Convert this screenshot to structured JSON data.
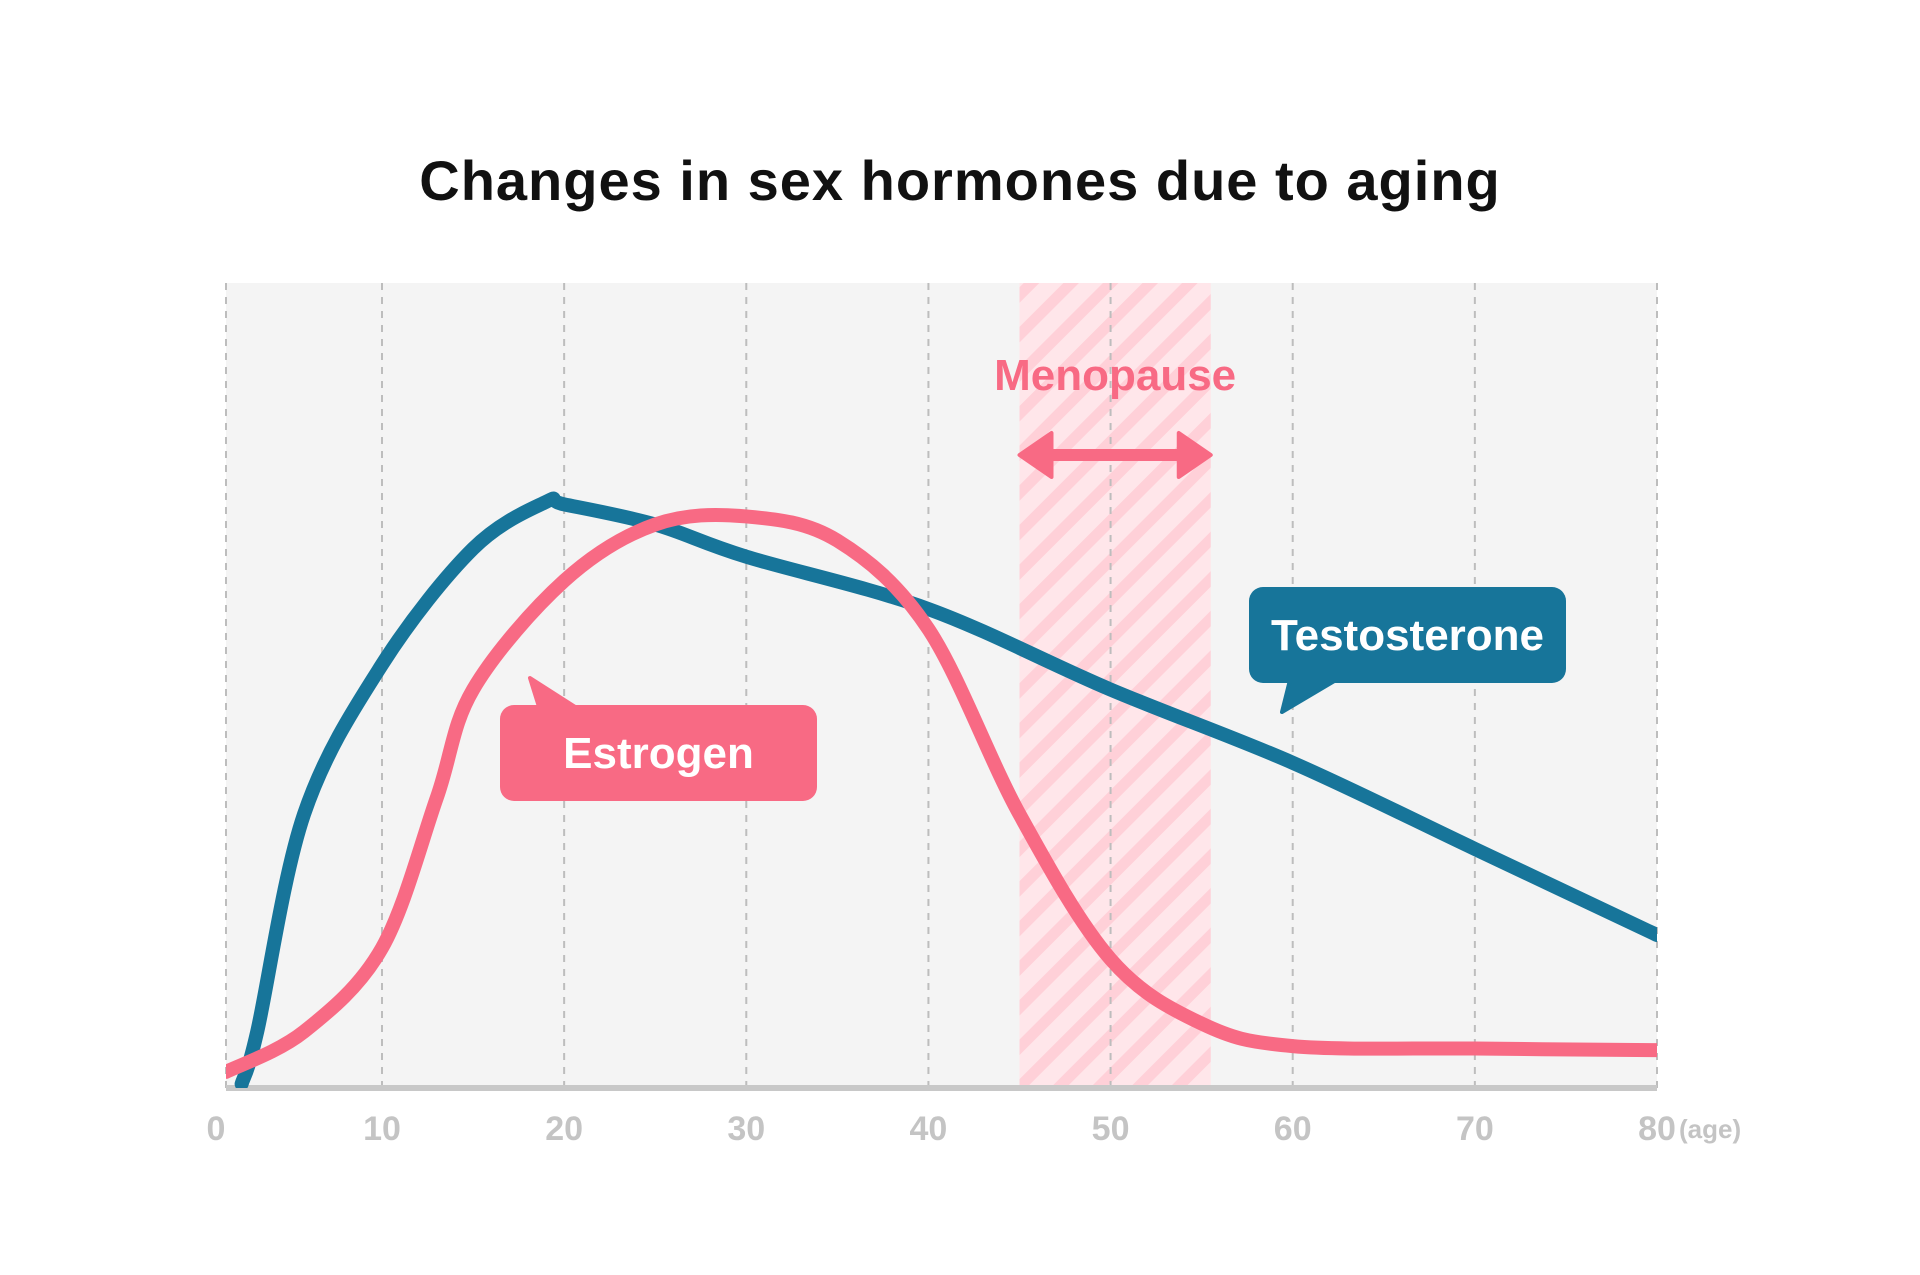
{
  "chart_data": {
    "type": "line",
    "title": "Changes in sex hormones due to aging",
    "xlabel": "(age)",
    "ylabel": "",
    "xlim": [
      0,
      80
    ],
    "ylim": [
      0,
      100
    ],
    "x_ticks": [
      "0",
      "10",
      "20",
      "30",
      "40",
      "50",
      "60",
      "70",
      "80"
    ],
    "grid": "vertical dashed",
    "series": [
      {
        "name": "Testosterone",
        "color": "#17759a",
        "points": [
          [
            1,
            0.5
          ],
          [
            2,
            7
          ],
          [
            5,
            34
          ],
          [
            10,
            52.6
          ],
          [
            15,
            67
          ],
          [
            19,
            72.8
          ],
          [
            20,
            72.5
          ],
          [
            25,
            70
          ],
          [
            30,
            66
          ],
          [
            40,
            59.5
          ],
          [
            50,
            49.5
          ],
          [
            60,
            40.4
          ],
          [
            70,
            29.7
          ],
          [
            80,
            19
          ]
        ]
      },
      {
        "name": "Estrogen",
        "color": "#f86a84",
        "points": [
          [
            0,
            2
          ],
          [
            5,
            7
          ],
          [
            10,
            17.4
          ],
          [
            13,
            36
          ],
          [
            15,
            49.5
          ],
          [
            20,
            63
          ],
          [
            25,
            70
          ],
          [
            30,
            71
          ],
          [
            35,
            68
          ],
          [
            40,
            57
          ],
          [
            45,
            34
          ],
          [
            50,
            16
          ],
          [
            55,
            8
          ],
          [
            60,
            5.2
          ],
          [
            70,
            4.9
          ],
          [
            80,
            4.7
          ]
        ]
      }
    ],
    "annotations": [
      {
        "label": "Menopause",
        "range": [
          45,
          55.5
        ],
        "color": "#f86a84"
      }
    ]
  }
}
